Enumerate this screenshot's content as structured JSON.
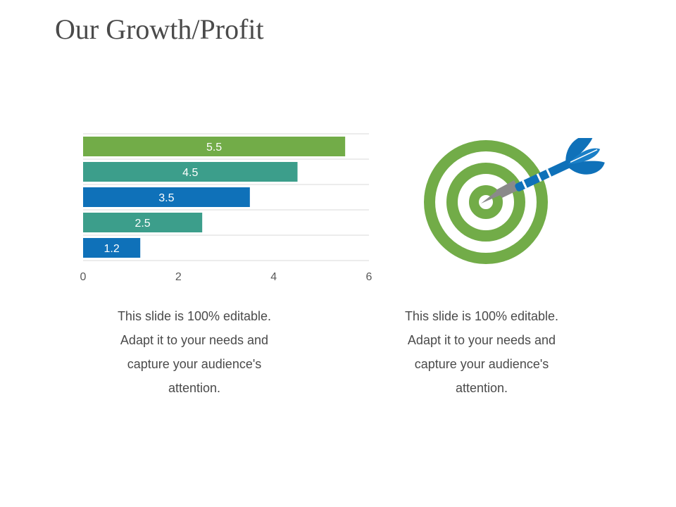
{
  "slide": {
    "title": "Our Growth/Profit"
  },
  "chart_data": {
    "type": "bar",
    "orientation": "horizontal",
    "values": [
      5.5,
      4.5,
      3.5,
      2.5,
      1.2
    ],
    "data_labels": [
      "5.5",
      "4.5",
      "3.5",
      "2.5",
      "1.2"
    ],
    "bar_colors": [
      "#72ac48",
      "#3c9e8b",
      "#0f71b9",
      "#3c9e8b",
      "#0f71b9"
    ],
    "xlim": [
      0,
      6
    ],
    "x_ticks": [
      "0",
      "2",
      "4",
      "6"
    ],
    "grid": true,
    "title": "",
    "xlabel": "",
    "ylabel": ""
  },
  "captions": {
    "left": {
      "lines": [
        "This slide is 100% editable.",
        "Adapt it to your needs and",
        "capture your audience's",
        "attention."
      ]
    },
    "right": {
      "lines": [
        "This slide is 100% editable.",
        "Adapt it to your needs and",
        "capture your audience's",
        "attention."
      ]
    }
  },
  "icons": {
    "target": "target-dart-icon"
  },
  "colors": {
    "green": "#72ac48",
    "teal": "#3c9e8b",
    "blue": "#0f71b9",
    "grid": "#d9d9d9",
    "dart_tip": "#8a8a8a"
  }
}
